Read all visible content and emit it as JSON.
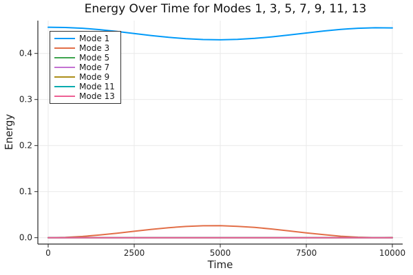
{
  "chart_data": {
    "type": "line",
    "title": "Energy Over Time for Modes 1, 3, 5, 7, 9, 11, 13",
    "xlabel": "Time",
    "ylabel": "Energy",
    "xlim": [
      0,
      10000
    ],
    "ylim": [
      -0.014,
      0.471
    ],
    "xticks": [
      0,
      2500,
      5000,
      7500,
      10000
    ],
    "xtick_labels": [
      "0",
      "2500",
      "5000",
      "7500",
      "10000"
    ],
    "yticks": [
      0.0,
      0.1,
      0.2,
      0.3,
      0.4
    ],
    "ytick_labels": [
      "0.0",
      "0.1",
      "0.2",
      "0.3",
      "0.4"
    ],
    "grid": true,
    "legend_position": "top-left",
    "x": [
      0,
      500,
      1000,
      1500,
      2000,
      2500,
      3000,
      3500,
      4000,
      4500,
      5000,
      5500,
      6000,
      6500,
      7000,
      7500,
      8000,
      8500,
      9000,
      9500,
      10000
    ],
    "series": [
      {
        "name": "Mode 1",
        "color": "#009af9",
        "values": [
          0.4568,
          0.4563,
          0.4546,
          0.4516,
          0.4477,
          0.4432,
          0.4388,
          0.4349,
          0.4319,
          0.4301,
          0.4296,
          0.4305,
          0.4327,
          0.436,
          0.44,
          0.4444,
          0.4487,
          0.4522,
          0.4546,
          0.4557,
          0.4553
        ]
      },
      {
        "name": "Mode 3",
        "color": "#e26e47",
        "values": [
          0.0,
          0.0007,
          0.0027,
          0.0058,
          0.0096,
          0.0139,
          0.018,
          0.0216,
          0.0243,
          0.0258,
          0.0259,
          0.0247,
          0.0222,
          0.0188,
          0.0147,
          0.0105,
          0.0065,
          0.0032,
          0.001,
          0.0001,
          0.0004
        ]
      },
      {
        "name": "Mode 5",
        "color": "#3da44e",
        "values": [
          0,
          0,
          0,
          0,
          0,
          0,
          0,
          0,
          0,
          0,
          0,
          0,
          0,
          0,
          0,
          0,
          0,
          0,
          0,
          0,
          0
        ]
      },
      {
        "name": "Mode 7",
        "color": "#c371d2",
        "values": [
          0,
          0,
          0,
          0,
          0,
          0,
          0,
          0,
          0,
          0,
          0,
          0,
          0,
          0,
          0,
          0,
          0,
          0,
          0,
          0,
          0
        ]
      },
      {
        "name": "Mode 9",
        "color": "#ac8e18",
        "values": [
          0,
          0,
          0,
          0,
          0,
          0,
          0,
          0,
          0,
          0,
          0,
          0,
          0,
          0,
          0,
          0,
          0,
          0,
          0,
          0,
          0
        ]
      },
      {
        "name": "Mode 11",
        "color": "#00aaae",
        "values": [
          0,
          0,
          0,
          0,
          0,
          0,
          0,
          0,
          0,
          0,
          0,
          0,
          0,
          0,
          0,
          0,
          0,
          0,
          0,
          0,
          0
        ]
      },
      {
        "name": "Mode 13",
        "color": "#ed5e93",
        "values": [
          0,
          0,
          0,
          0,
          0,
          0,
          0,
          0,
          0,
          0,
          0,
          0,
          0,
          0,
          0,
          0,
          0,
          0,
          0,
          0,
          0
        ]
      }
    ],
    "style": {
      "background": "#ffffff",
      "grid_color": "#e9e9e9",
      "axis_color": "#262626",
      "text_color": "#1f1f1f",
      "line_width": 2
    }
  }
}
